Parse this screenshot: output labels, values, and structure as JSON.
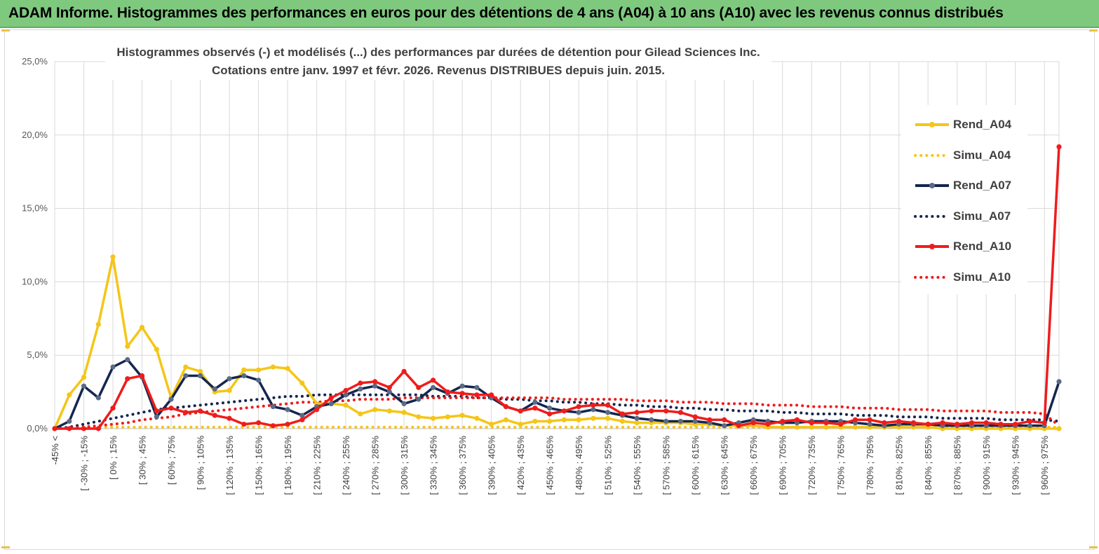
{
  "banner": {
    "title": "ADAM Informe. Histogrammes des performances en euros pour des détentions de 4 ans (A04) à 10 ans (A10) avec les revenus connus distribués"
  },
  "chart_data": {
    "type": "line",
    "title_lines": [
      "Histogrammes observés (-) et modélisés (...) des performances par durées de détention pour Gilead Sciences Inc.",
      "Cotations entre janv. 1997 et févr. 2026. Revenus DISTRIBUES depuis juin. 2015."
    ],
    "ylim": [
      0,
      25
    ],
    "yticks": [
      "0,0%",
      "5,0%",
      "10,0%",
      "15,0%",
      "20,0%",
      "25,0%"
    ],
    "grid": true,
    "legend_position": "right",
    "x_labels": [
      "-45% <",
      "[ -30% ; -15%",
      "[ 0% ; 15%",
      "[ 30% ; 45%",
      "[ 60% ; 75%",
      "[ 90% ; 105%",
      "[ 120% ; 135%",
      "[ 150% ; 165%",
      "[ 180% ; 195%",
      "[ 210% ; 225%",
      "[ 240% ; 255%",
      "[ 270% ; 285%",
      "[ 300% ; 315%",
      "[ 330% ; 345%",
      "[ 360% ; 375%",
      "[ 390% ; 405%",
      "[ 420% ; 435%",
      "[ 450% ; 465%",
      "[ 480% ; 495%",
      "[ 510% ; 525%",
      "[ 540% ; 555%",
      "[ 570% ; 585%",
      "[ 600% ; 615%",
      "[ 630% ; 645%",
      "[ 660% ; 675%",
      "[ 690% ; 705%",
      "[ 720% ; 735%",
      "[ 750% ; 765%",
      "[ 780% ; 795%",
      "[ 810% ; 825%",
      "[ 840% ; 855%",
      "[ 870% ; 885%",
      "[ 900% ; 915%",
      "[ 930% ; 945%",
      "[ 960% ; 975%"
    ],
    "series": [
      {
        "name": "Rend_A04",
        "color": "#f5c518",
        "style": "solid",
        "values": [
          0,
          2.3,
          3.5,
          7.1,
          11.7,
          5.6,
          6.9,
          5.4,
          2.1,
          4.2,
          3.9,
          2.5,
          2.6,
          4.0,
          4.0,
          4.2,
          4.1,
          3.1,
          1.7,
          1.7,
          1.6,
          1.0,
          1.3,
          1.2,
          1.1,
          0.8,
          0.7,
          0.8,
          0.9,
          0.7,
          0.3,
          0.6,
          0.3,
          0.5,
          0.5,
          0.6,
          0.6,
          0.7,
          0.7,
          0.5,
          0.4,
          0.4,
          0.4,
          0.4,
          0.3,
          0.3,
          0.2,
          0.2,
          0.2,
          0.1,
          0.1,
          0.1,
          0.1,
          0.1,
          0.1,
          0.1,
          0.1,
          0.1,
          0.1,
          0.1,
          0.1,
          0.0,
          0.0,
          0.0,
          0.0,
          0.0,
          0.0,
          0.0,
          0.0,
          0.0
        ]
      },
      {
        "name": "Simu_A04",
        "color": "#f5c518",
        "style": "dotted",
        "values": [
          0.0,
          0.05,
          0.1,
          0.1,
          0.1,
          0.1,
          0.1,
          0.1,
          0.1,
          0.1,
          0.1,
          0.1,
          0.1,
          0.1,
          0.1,
          0.1,
          0.1,
          0.1,
          0.1,
          0.1,
          0.1,
          0.1,
          0.1,
          0.1,
          0.1,
          0.1,
          0.1,
          0.1,
          0.1,
          0.1,
          0.1,
          0.1,
          0.1,
          0.1,
          0.1,
          0.1,
          0.1,
          0.1,
          0.1,
          0.1,
          0.1,
          0.1,
          0.1,
          0.1,
          0.1,
          0.1,
          0.1,
          0.1,
          0.1,
          0.1,
          0.1,
          0.1,
          0.1,
          0.1,
          0.1,
          0.1,
          0.1,
          0.1,
          0.1,
          0.1,
          0.1,
          0.1,
          0.1,
          0.1,
          0.1,
          0.1,
          0.1,
          0.1,
          0.1,
          0.1
        ]
      },
      {
        "name": "Rend_A07",
        "color": "#14264f",
        "style": "solid",
        "values": [
          0,
          0.5,
          2.9,
          2.1,
          4.2,
          4.7,
          3.5,
          0.8,
          2.0,
          3.6,
          3.6,
          2.7,
          3.4,
          3.6,
          3.3,
          1.5,
          1.3,
          0.9,
          1.5,
          1.7,
          2.3,
          2.7,
          2.9,
          2.5,
          1.7,
          2.0,
          2.8,
          2.4,
          2.9,
          2.8,
          2.1,
          1.5,
          1.2,
          1.8,
          1.4,
          1.2,
          1.1,
          1.3,
          1.1,
          0.9,
          0.7,
          0.6,
          0.5,
          0.5,
          0.5,
          0.4,
          0.2,
          0.4,
          0.6,
          0.5,
          0.4,
          0.4,
          0.5,
          0.5,
          0.5,
          0.4,
          0.3,
          0.2,
          0.3,
          0.3,
          0.3,
          0.2,
          0.2,
          0.2,
          0.2,
          0.2,
          0.2,
          0.2,
          0.2,
          3.2
        ]
      },
      {
        "name": "Simu_A07",
        "color": "#14264f",
        "style": "dotted",
        "values": [
          0.0,
          0.1,
          0.3,
          0.5,
          0.7,
          0.9,
          1.1,
          1.3,
          1.4,
          1.5,
          1.6,
          1.7,
          1.8,
          1.9,
          2.0,
          2.1,
          2.2,
          2.2,
          2.3,
          2.3,
          2.3,
          2.3,
          2.3,
          2.3,
          2.3,
          2.3,
          2.2,
          2.2,
          2.2,
          2.1,
          2.1,
          2.0,
          2.0,
          1.9,
          1.9,
          1.8,
          1.8,
          1.7,
          1.7,
          1.6,
          1.6,
          1.5,
          1.5,
          1.4,
          1.4,
          1.3,
          1.3,
          1.2,
          1.2,
          1.2,
          1.1,
          1.1,
          1.0,
          1.0,
          1.0,
          0.9,
          0.9,
          0.9,
          0.8,
          0.8,
          0.8,
          0.7,
          0.7,
          0.7,
          0.7,
          0.6,
          0.6,
          0.6,
          0.6,
          0.5
        ]
      },
      {
        "name": "Rend_A10",
        "color": "#ef1c1c",
        "style": "solid",
        "values": [
          0,
          0,
          0,
          0,
          1.4,
          3.4,
          3.6,
          1.2,
          1.4,
          1.1,
          1.2,
          0.9,
          0.7,
          0.3,
          0.4,
          0.2,
          0.3,
          0.6,
          1.3,
          2.1,
          2.6,
          3.1,
          3.2,
          2.8,
          3.9,
          2.8,
          3.3,
          2.5,
          2.4,
          2.3,
          2.3,
          1.5,
          1.2,
          1.4,
          1.0,
          1.2,
          1.5,
          1.6,
          1.6,
          1.0,
          1.1,
          1.2,
          1.2,
          1.1,
          0.8,
          0.6,
          0.6,
          0.2,
          0.4,
          0.3,
          0.5,
          0.6,
          0.4,
          0.4,
          0.3,
          0.6,
          0.6,
          0.4,
          0.5,
          0.4,
          0.3,
          0.4,
          0.3,
          0.4,
          0.4,
          0.3,
          0.3,
          0.5,
          0.4,
          19.2
        ]
      },
      {
        "name": "Simu_A10",
        "color": "#ef1c1c",
        "style": "dotted",
        "values": [
          0.0,
          0.05,
          0.1,
          0.2,
          0.3,
          0.4,
          0.6,
          0.7,
          0.8,
          1.0,
          1.1,
          1.2,
          1.3,
          1.4,
          1.5,
          1.6,
          1.7,
          1.8,
          1.8,
          1.9,
          1.9,
          2.0,
          2.0,
          2.0,
          2.1,
          2.1,
          2.1,
          2.1,
          2.1,
          2.1,
          2.1,
          2.1,
          2.1,
          2.1,
          2.1,
          2.0,
          2.0,
          2.0,
          2.0,
          2.0,
          1.9,
          1.9,
          1.9,
          1.8,
          1.8,
          1.8,
          1.7,
          1.7,
          1.7,
          1.6,
          1.6,
          1.6,
          1.5,
          1.5,
          1.5,
          1.4,
          1.4,
          1.4,
          1.3,
          1.3,
          1.3,
          1.2,
          1.2,
          1.2,
          1.2,
          1.1,
          1.1,
          1.1,
          1.0,
          0.2
        ]
      }
    ]
  }
}
